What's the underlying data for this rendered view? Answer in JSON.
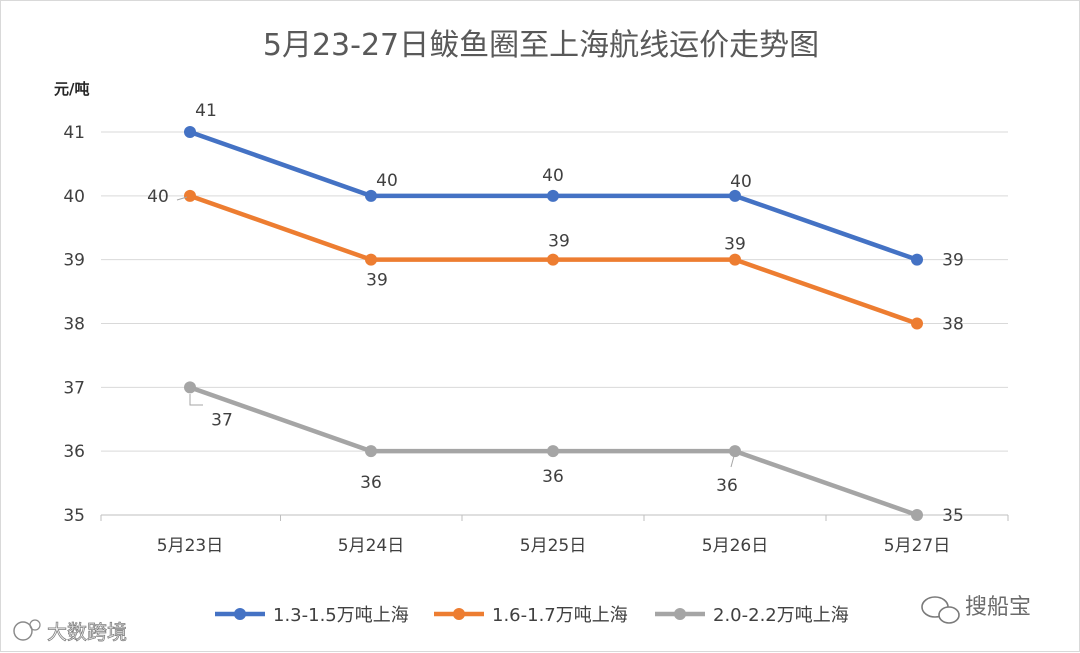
{
  "chart_data": {
    "type": "line",
    "title": "5月23-27日鲅鱼圈至上海航线运价走势图",
    "ylabel": "元/吨",
    "xlabel": "",
    "categories": [
      "5月23日",
      "5月24日",
      "5月25日",
      "5月26日",
      "5月27日"
    ],
    "ylim": [
      35,
      41
    ],
    "yticks": [
      "35",
      "36",
      "37",
      "38",
      "39",
      "40",
      "41"
    ],
    "grid": true,
    "legend_position": "bottom",
    "series": [
      {
        "name": "1.3-1.5万吨上海",
        "color": "#4472C4",
        "values": [
          41,
          40,
          40,
          40,
          39
        ],
        "labels": [
          "41",
          "40",
          "40",
          "40",
          "39"
        ]
      },
      {
        "name": "1.6-1.7万吨上海",
        "color": "#ED7D31",
        "values": [
          40,
          39,
          39,
          39,
          38
        ],
        "labels": [
          "40",
          "39",
          "39",
          "39",
          "38"
        ]
      },
      {
        "name": "2.0-2.2万吨上海",
        "color": "#A5A5A5",
        "values": [
          37,
          36,
          36,
          36,
          35
        ],
        "labels": [
          "37",
          "36",
          "36",
          "36",
          "35"
        ]
      }
    ]
  },
  "watermarks": {
    "left": "大数跨境",
    "right": "搜船宝"
  }
}
